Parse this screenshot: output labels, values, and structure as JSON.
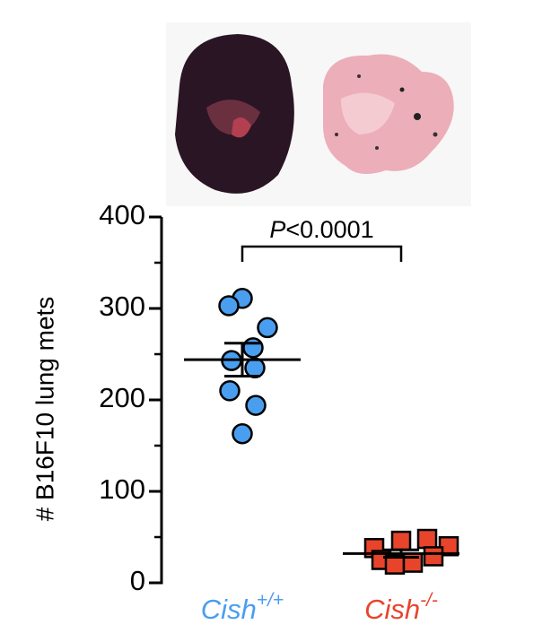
{
  "chart_data": {
    "type": "scatter",
    "ylabel": "# B16F10 lung mets",
    "ylim": [
      0,
      400
    ],
    "yticks": [
      0,
      100,
      200,
      300,
      400
    ],
    "yminor_ticks": [
      50,
      150,
      250,
      350
    ],
    "annotation": {
      "italic": "P",
      "text": "<0.0001"
    },
    "series": [
      {
        "name": {
          "base": "Cish",
          "sup": "+/+"
        },
        "color": "#4a9ef0",
        "marker": "circle",
        "values": [
          311,
          303,
          279,
          257,
          243,
          235,
          210,
          194,
          163
        ],
        "mean": 244,
        "sem": 18
      },
      {
        "name": {
          "base": "Cish",
          "sup": "-/-"
        },
        "color": "#e8442c",
        "marker": "square",
        "values": [
          38,
          46,
          48,
          40,
          25,
          20,
          22,
          29
        ],
        "mean": 32,
        "sem": 4
      }
    ]
  }
}
